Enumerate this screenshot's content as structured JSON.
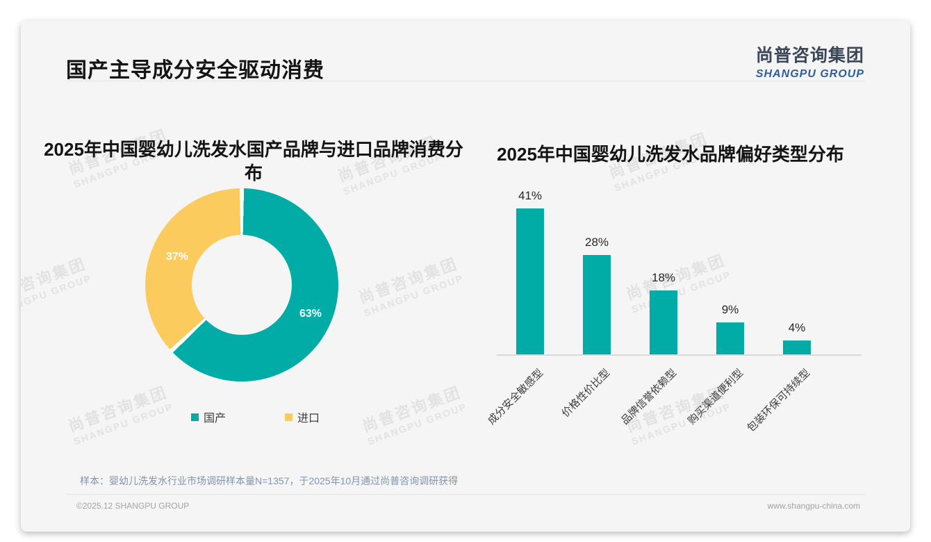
{
  "header": {
    "title": "国产主导成分安全驱动消费",
    "logo_cn": "尚普咨询集团",
    "logo_en": "SHANGPU GROUP"
  },
  "colors": {
    "accent_teal": "#00ACA5",
    "accent_yellow": "#FBCB5E",
    "logo_blue": "#2E5D9C"
  },
  "watermark": {
    "line1": "尚普咨询集团",
    "line2": "SHANGPU GROUP"
  },
  "chart_data": [
    {
      "type": "pie",
      "subtype": "donut",
      "title": "2025年中国婴幼儿洗发水国产品牌与进口品牌消费分布",
      "title_lines": [
        "2025年中国婴幼儿洗发水国产品牌与进口品牌消费分",
        "布"
      ],
      "labels": [
        "国产",
        "进口"
      ],
      "values": [
        63,
        37
      ],
      "data_labels": [
        "63%",
        "37%"
      ],
      "colors": [
        "#00ACA5",
        "#FBCB5E"
      ],
      "start_angle_deg": 0,
      "direction": "clockwise",
      "legend_position": "bottom"
    },
    {
      "type": "bar",
      "title": "2025年中国婴幼儿洗发水品牌偏好类型分布",
      "categories": [
        "成分安全敏感型",
        "价格性价比型",
        "品牌信誉依赖型",
        "购买渠道便利型",
        "包装环保可持续型"
      ],
      "values": [
        41,
        28,
        18,
        9,
        4
      ],
      "data_labels": [
        "41%",
        "28%",
        "18%",
        "9%",
        "4%"
      ],
      "bar_color": "#00ACA5",
      "xlabel": "",
      "ylabel": "",
      "ylim": [
        0,
        45
      ],
      "grid": false,
      "category_label_rotation_deg": 45
    }
  ],
  "footnote": {
    "sample_note": "样本：婴幼儿洗发水行业市场调研样本量N=1357，于2025年10月通过尚普咨询调研获得"
  },
  "footer": {
    "copyright": "©2025.12 SHANGPU GROUP",
    "website": "www.shangpu-china.com"
  }
}
